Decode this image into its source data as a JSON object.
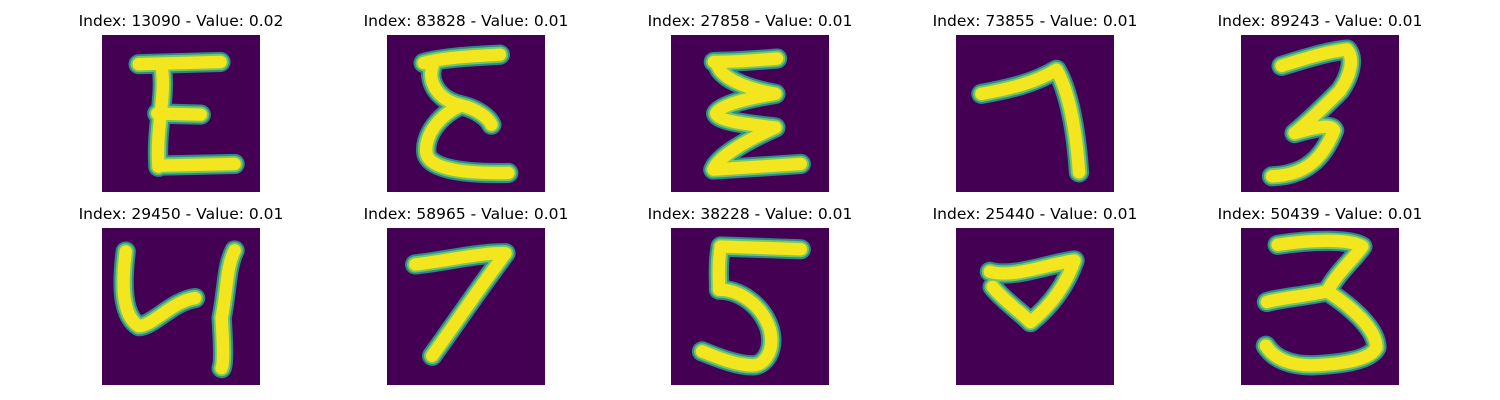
{
  "figure": {
    "colors": {
      "background": "#440154",
      "glow": "#2a8c8a",
      "mid": "#74c765",
      "core": "#f4e61e"
    },
    "panels": [
      {
        "title": "Index: 13090 - Value: 0.02",
        "digit_shape": "E"
      },
      {
        "title": "Index: 83828 - Value: 0.01",
        "digit_shape": "epsilon"
      },
      {
        "title": "Index: 27858 - Value: 0.01",
        "digit_shape": "zigzag-3"
      },
      {
        "title": "Index: 73855 - Value: 0.01",
        "digit_shape": "7"
      },
      {
        "title": "Index: 89243 - Value: 0.01",
        "digit_shape": "3"
      },
      {
        "title": "Index: 29450 - Value: 0.01",
        "digit_shape": "4"
      },
      {
        "title": "Index: 58965 - Value: 0.01",
        "digit_shape": "7"
      },
      {
        "title": "Index: 38228 - Value: 0.01",
        "digit_shape": "5"
      },
      {
        "title": "Index: 25440 - Value: 0.01",
        "digit_shape": "7"
      },
      {
        "title": "Index: 50439 - Value: 0.01",
        "digit_shape": "3"
      }
    ]
  }
}
